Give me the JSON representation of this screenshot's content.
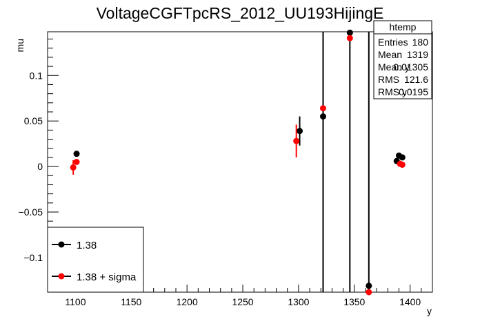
{
  "chart_data": {
    "type": "scatter",
    "title": "VoltageCGFTpcRS_2012_UU193HijingE",
    "xlabel": "y",
    "ylabel": "mu",
    "xlim": [
      1075,
      1420
    ],
    "ylim": [
      -0.138,
      0.148
    ],
    "x_ticks": [
      1100,
      1150,
      1200,
      1250,
      1300,
      1350,
      1400
    ],
    "y_ticks": [
      -0.1,
      -0.05,
      0,
      0.05,
      0.1
    ],
    "x_tick_labels": [
      "1100",
      "1150",
      "1200",
      "1250",
      "1300",
      "1350",
      "1400"
    ],
    "y_tick_labels": [
      "−0.1",
      "−0.05",
      "0",
      "0.05",
      "0.1"
    ],
    "legend_position": "bottom-left",
    "series": [
      {
        "name": "1.38",
        "color": "#000000",
        "points": [
          {
            "x": 1101,
            "y": 0.014,
            "err": 0.0
          },
          {
            "x": 1301,
            "y": 0.039,
            "err": 0.016
          },
          {
            "x": 1322,
            "y": 0.055,
            "err": 0.5
          },
          {
            "x": 1346,
            "y": 0.147,
            "err": 0.5
          },
          {
            "x": 1363,
            "y": -0.131,
            "err": 0.5
          },
          {
            "x": 1388,
            "y": 0.006,
            "err": 0.0
          },
          {
            "x": 1390,
            "y": 0.012,
            "err": 0.0
          },
          {
            "x": 1393,
            "y": 0.01,
            "err": 0.0
          }
        ]
      },
      {
        "name": "1.38 + sigma",
        "color": "#ff0000",
        "points": [
          {
            "x": 1098,
            "y": -0.001,
            "err": 0.008
          },
          {
            "x": 1101,
            "y": 0.005,
            "err": 0.0
          },
          {
            "x": 1298,
            "y": 0.028,
            "err": 0.018
          },
          {
            "x": 1322,
            "y": 0.064,
            "err": 0.0
          },
          {
            "x": 1346,
            "y": 0.141,
            "err": 0.0
          },
          {
            "x": 1363,
            "y": -0.138,
            "err": 0.0
          },
          {
            "x": 1391,
            "y": 0.003,
            "err": 0.0
          },
          {
            "x": 1393,
            "y": 0.002,
            "err": 0.0
          }
        ]
      }
    ],
    "stats_box": {
      "title": "htemp",
      "rows": [
        {
          "label": "Entries",
          "value": "180"
        },
        {
          "label": "Mean",
          "value": "1319"
        },
        {
          "label": "Mean y",
          "value": "0.01305"
        },
        {
          "label": "RMS",
          "value": "121.6"
        },
        {
          "label": "RMS y",
          "value": "0.0195"
        }
      ]
    }
  }
}
